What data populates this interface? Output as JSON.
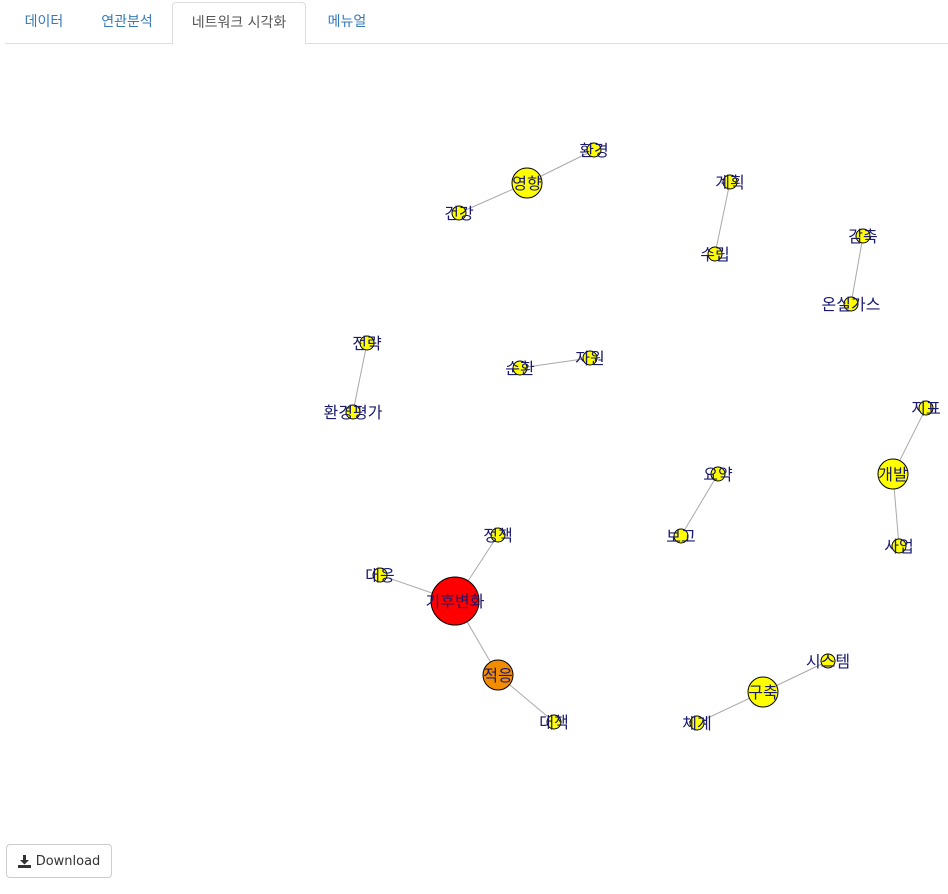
{
  "tabs": [
    {
      "label": "데이터"
    },
    {
      "label": "연관분석"
    },
    {
      "label": "네트워크 시각화"
    },
    {
      "label": "메뉴얼"
    }
  ],
  "active_tab": "네트워크 시각화",
  "network": {
    "label_color": "#191970",
    "edge_color": "#a9a9a9",
    "nodes": [
      {
        "id": "기후변화",
        "label": "기후변화",
        "color": "#ff0000",
        "size": 24
      },
      {
        "id": "적응",
        "label": "적응",
        "color": "#f28c00",
        "size": 15
      },
      {
        "id": "정책",
        "label": "정책",
        "color": "#ffff00",
        "size": 7
      },
      {
        "id": "대응",
        "label": "대응",
        "color": "#ffff00",
        "size": 7
      },
      {
        "id": "대책",
        "label": "대책",
        "color": "#ffff00",
        "size": 7
      },
      {
        "id": "영향",
        "label": "영향",
        "color": "#ffff00",
        "size": 15
      },
      {
        "id": "환경",
        "label": "환경",
        "color": "#ffff00",
        "size": 7
      },
      {
        "id": "건강",
        "label": "건강",
        "color": "#ffff00",
        "size": 7
      },
      {
        "id": "계획",
        "label": "계획",
        "color": "#ffff00",
        "size": 7
      },
      {
        "id": "수립",
        "label": "수립",
        "color": "#ffff00",
        "size": 7
      },
      {
        "id": "감축",
        "label": "감축",
        "color": "#ffff00",
        "size": 7
      },
      {
        "id": "온실가스",
        "label": "온실가스",
        "color": "#ffff00",
        "size": 7
      },
      {
        "id": "전략",
        "label": "전략",
        "color": "#ffff00",
        "size": 7
      },
      {
        "id": "환경평가",
        "label": "환경평가",
        "color": "#ffff00",
        "size": 7
      },
      {
        "id": "순환",
        "label": "순환",
        "color": "#ffff00",
        "size": 7
      },
      {
        "id": "자원",
        "label": "자원",
        "color": "#ffff00",
        "size": 7
      },
      {
        "id": "지표",
        "label": "지표",
        "color": "#ffff00",
        "size": 7
      },
      {
        "id": "개발",
        "label": "개발",
        "color": "#ffff00",
        "size": 15
      },
      {
        "id": "사업",
        "label": "사업",
        "color": "#ffff00",
        "size": 7
      },
      {
        "id": "요약",
        "label": "요약",
        "color": "#ffff00",
        "size": 7
      },
      {
        "id": "보고",
        "label": "보고",
        "color": "#ffff00",
        "size": 7
      },
      {
        "id": "시스템",
        "label": "시스템",
        "color": "#ffff00",
        "size": 7
      },
      {
        "id": "구축",
        "label": "구축",
        "color": "#ffff00",
        "size": 15
      },
      {
        "id": "체계",
        "label": "체계",
        "color": "#ffff00",
        "size": 7
      }
    ],
    "edges": [
      {
        "from": "기후변화",
        "to": "정책"
      },
      {
        "from": "기후변화",
        "to": "대응"
      },
      {
        "from": "기후변화",
        "to": "적응"
      },
      {
        "from": "적응",
        "to": "대책"
      },
      {
        "from": "영향",
        "to": "환경"
      },
      {
        "from": "영향",
        "to": "건강"
      },
      {
        "from": "계획",
        "to": "수립"
      },
      {
        "from": "감축",
        "to": "온실가스"
      },
      {
        "from": "전략",
        "to": "환경평가"
      },
      {
        "from": "순환",
        "to": "자원"
      },
      {
        "from": "지표",
        "to": "개발"
      },
      {
        "from": "개발",
        "to": "사업"
      },
      {
        "from": "요약",
        "to": "보고"
      },
      {
        "from": "시스템",
        "to": "구축"
      },
      {
        "from": "구축",
        "to": "체계"
      }
    ]
  },
  "download": {
    "label": "Download",
    "icon": "download-icon"
  }
}
